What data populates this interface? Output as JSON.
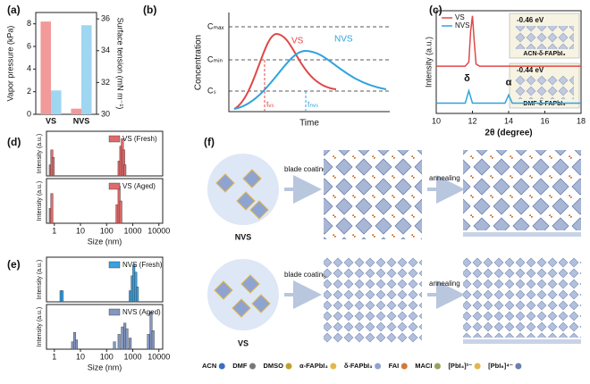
{
  "chart_data": [
    {
      "type": "bar",
      "panel": "(a)",
      "categories": [
        "VS",
        "NVS"
      ],
      "ylabel": "Vapor pressure (kPa)",
      "y2label": "Surface tension (mN m⁻¹)",
      "ylim": [
        0,
        9
      ],
      "yticks": [
        0,
        2,
        4,
        6,
        8
      ],
      "y2lim": [
        30,
        36.4
      ],
      "y2ticks": [
        30,
        32,
        34,
        36
      ],
      "series": [
        {
          "color": "#f29a9a",
          "values": [
            8.2,
            0.5
          ]
        },
        {
          "color": "#9fd6f2",
          "axis": "y2",
          "values": [
            31.5,
            35.6
          ]
        }
      ]
    },
    {
      "type": "line",
      "panel": "(c)",
      "xlabel": "2θ (degree)",
      "ylabel": "Intensity (a.u.)",
      "xlim": [
        10,
        18
      ],
      "xticks": [
        10,
        12,
        14,
        16,
        18
      ],
      "ylim": [
        0,
        1
      ],
      "series": [
        {
          "name": "VS",
          "color": "#e04848",
          "x": [
            10,
            11.6,
            11.8,
            11.9,
            12,
            12.1,
            12.2,
            12.4,
            18
          ],
          "values": [
            0.46,
            0.46,
            0.5,
            0.8,
            0.95,
            0.7,
            0.48,
            0.46,
            0.46
          ]
        },
        {
          "name": "NVS",
          "color": "#2fa3e0",
          "x": [
            10,
            11.6,
            11.8,
            12,
            13.8,
            14,
            14.2,
            18
          ],
          "values": [
            0.1,
            0.1,
            0.22,
            0.1,
            0.1,
            0.18,
            0.1,
            0.1
          ]
        }
      ],
      "peaks": [
        "δ",
        "α"
      ],
      "insets": [
        {
          "energy": "-0.46 eV",
          "label": "ACN-δ-FAPbI₃"
        },
        {
          "energy": "-0.44 eV",
          "label": "DMF-δ-FAPbI₃"
        }
      ]
    },
    {
      "type": "bar",
      "panel": "(d)",
      "ylabel": "Intensity (a.u.)",
      "xlog": true,
      "xlim": [
        0.5,
        14000
      ],
      "ylim": [
        0,
        1.2
      ],
      "series": [
        {
          "name": "VS (Fresh)",
          "color": "#e06a6a",
          "x": [
            0.7,
            0.8,
            0.9,
            300,
            350,
            400,
            450,
            500
          ],
          "values": [
            0.3,
            0.7,
            0.5,
            0.4,
            0.8,
            1,
            0.7,
            0.3
          ]
        }
      ]
    },
    {
      "type": "bar",
      "ylabel": "Intensity (a.u.)",
      "xlabel": "Size (nm)",
      "xlog": true,
      "xlim": [
        0.5,
        14000
      ],
      "ylim": [
        0,
        1.2
      ],
      "xticks": [
        1,
        10,
        100,
        1000,
        10000
      ],
      "series": [
        {
          "name": "VS (Aged)",
          "color": "#e06a6a",
          "x": [
            0.7,
            0.8,
            250,
            300,
            350
          ],
          "values": [
            0.4,
            0.8,
            0.5,
            1,
            0.6
          ]
        }
      ]
    },
    {
      "type": "bar",
      "panel": "(e)",
      "ylabel": "Intensity (a.u.)",
      "xlog": true,
      "xlim": [
        0.5,
        14000
      ],
      "ylim": [
        0,
        1.2
      ],
      "series": [
        {
          "name": "NVS (Fresh)",
          "color": "#3aa0e0",
          "x": [
            1.8,
            2.0,
            800,
            950,
            1100,
            1300,
            1500
          ],
          "values": [
            0.3,
            0.3,
            0.3,
            0.7,
            1,
            0.8,
            0.4
          ]
        }
      ]
    },
    {
      "type": "bar",
      "ylabel": "Intensity (a.u.)",
      "xlabel": "Size (nm)",
      "xlog": true,
      "xlim": [
        0.5,
        14000
      ],
      "ylim": [
        0,
        1.2
      ],
      "xticks": [
        1,
        10,
        100,
        1000,
        10000
      ],
      "series": [
        {
          "name": "NVS (Aged)",
          "color": "#8397c0",
          "x": [
            5,
            6,
            7,
            200,
            300,
            400,
            500,
            600,
            800,
            4000,
            5000,
            6000
          ],
          "values": [
            0.2,
            0.45,
            0.25,
            0.2,
            0.4,
            0.6,
            0.7,
            0.55,
            0.3,
            0.4,
            1,
            0.5
          ]
        }
      ]
    }
  ],
  "schematic": {
    "panel": "(b)",
    "ylabel": "Concentration",
    "xlabel": "Time",
    "levels": [
      "Cₘₐₓ",
      "Cₘᵢₙ",
      "Cₛ"
    ],
    "curves": [
      "VS",
      "NVS"
    ],
    "times": [
      "tᵥₛ",
      "tₙᵥₛ"
    ]
  },
  "diagram": {
    "panel": "(f)",
    "rows": [
      {
        "solution": "NVS",
        "step1": "blade coating",
        "step2": "annealing"
      },
      {
        "solution": "VS",
        "step1": "blade coating",
        "step2": "annealing"
      }
    ],
    "legend": [
      "ACN",
      "DMF",
      "DMSO",
      "α-FAPbI₃",
      "δ-FAPbI₃",
      "FAI",
      "MACI",
      "[PbI₄]²⁻",
      "[PbI₆]⁴⁻"
    ]
  }
}
